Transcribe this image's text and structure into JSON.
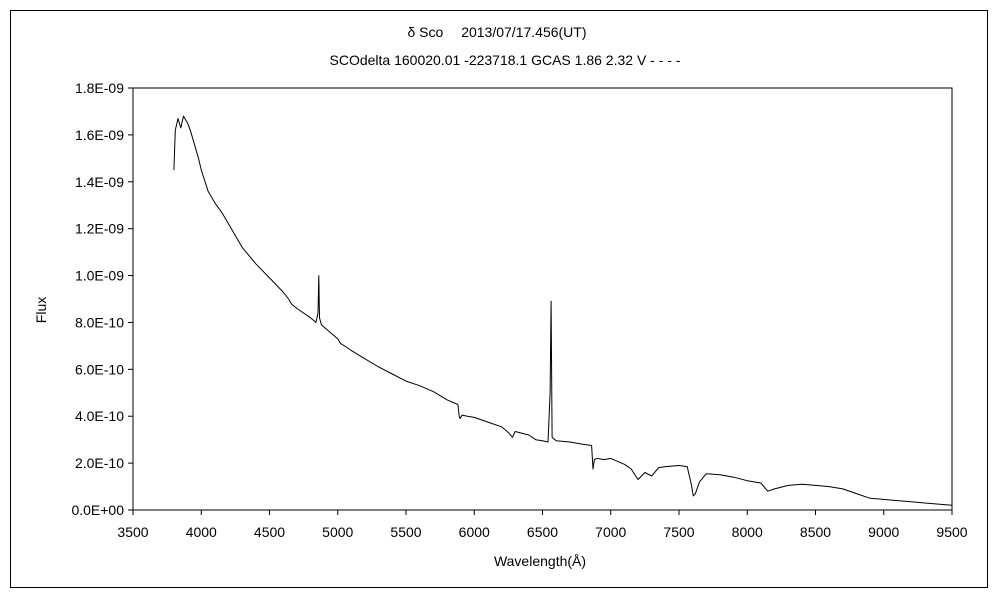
{
  "chart_data": {
    "type": "line",
    "title": "δ Sco　 2013/07/17.456(UT)",
    "subtitle": "SCOdelta 160020.01 -223718.1 GCAS 1.86 2.32 V - - - -",
    "xlabel": "Wavelength(Å)",
    "ylabel": "Flux",
    "xlim": [
      3500,
      9500
    ],
    "ylim": [
      0,
      1.8e-09
    ],
    "x_ticks": [
      3500,
      4000,
      4500,
      5000,
      5500,
      6000,
      6500,
      7000,
      7500,
      8000,
      8500,
      9000,
      9500
    ],
    "x_tick_labels": [
      "3500",
      "4000",
      "4500",
      "5000",
      "5500",
      "6000",
      "6500",
      "7000",
      "7500",
      "8000",
      "8500",
      "9000",
      "9500"
    ],
    "y_ticks": [
      0,
      2e-10,
      4e-10,
      6e-10,
      8e-10,
      1e-09,
      1.2e-09,
      1.4e-09,
      1.6e-09,
      1.8e-09
    ],
    "y_tick_labels": [
      "0.0E+00",
      "2.0E-10",
      "4.0E-10",
      "6.0E-10",
      "8.0E-10",
      "1.0E-09",
      "1.2E-09",
      "1.4E-09",
      "1.6E-09",
      "1.8E-09"
    ],
    "grid": false,
    "legend": "none",
    "series": [
      {
        "color": "#000000",
        "x": [
          3800,
          3810,
          3830,
          3850,
          3870,
          3900,
          3920,
          3950,
          3980,
          4000,
          4050,
          4100,
          4150,
          4200,
          4300,
          4400,
          4500,
          4600,
          4640,
          4660,
          4700,
          4800,
          4840,
          4855,
          4861,
          4866,
          4880,
          4920,
          5000,
          5020,
          5050,
          5100,
          5200,
          5300,
          5400,
          5500,
          5600,
          5700,
          5800,
          5880,
          5890,
          5896,
          5910,
          5950,
          6000,
          6100,
          6200,
          6250,
          6280,
          6300,
          6400,
          6450,
          6500,
          6540,
          6556,
          6563,
          6570,
          6600,
          6700,
          6800,
          6860,
          6870,
          6880,
          6900,
          6950,
          7000,
          7100,
          7150,
          7200,
          7250,
          7300,
          7350,
          7400,
          7500,
          7560,
          7590,
          7605,
          7620,
          7650,
          7700,
          7800,
          7900,
          8000,
          8100,
          8150,
          8200,
          8300,
          8400,
          8500,
          8600,
          8700,
          8800,
          8900,
          9000,
          9100,
          9200,
          9300,
          9400,
          9500
        ],
        "y": [
          1.45e-09,
          1.62e-09,
          1.67e-09,
          1.63e-09,
          1.68e-09,
          1.65e-09,
          1.62e-09,
          1.56e-09,
          1.5e-09,
          1.45e-09,
          1.36e-09,
          1.31e-09,
          1.27e-09,
          1.22e-09,
          1.12e-09,
          1.05e-09,
          9.9e-10,
          9.3e-10,
          9e-10,
          8.8e-10,
          8.6e-10,
          8.2e-10,
          8e-10,
          8.4e-10,
          1e-09,
          8.2e-10,
          7.9e-10,
          7.7e-10,
          7.3e-10,
          7.1e-10,
          7e-10,
          6.8e-10,
          6.45e-10,
          6.1e-10,
          5.8e-10,
          5.5e-10,
          5.3e-10,
          5.05e-10,
          4.7e-10,
          4.5e-10,
          4e-10,
          3.9e-10,
          4.05e-10,
          4e-10,
          3.95e-10,
          3.75e-10,
          3.55e-10,
          3.3e-10,
          3.1e-10,
          3.35e-10,
          3.2e-10,
          3e-10,
          2.95e-10,
          2.9e-10,
          5e-10,
          8.9e-10,
          3.1e-10,
          2.95e-10,
          2.9e-10,
          2.8e-10,
          2.75e-10,
          1.75e-10,
          2.15e-10,
          2.2e-10,
          2.15e-10,
          2.2e-10,
          1.95e-10,
          1.75e-10,
          1.3e-10,
          1.6e-10,
          1.45e-10,
          1.8e-10,
          1.85e-10,
          1.9e-10,
          1.85e-10,
          1.1e-10,
          6e-11,
          7e-11,
          1.2e-10,
          1.55e-10,
          1.5e-10,
          1.4e-10,
          1.25e-10,
          1.15e-10,
          8e-11,
          9e-11,
          1.05e-10,
          1.1e-10,
          1.05e-10,
          1e-10,
          9e-11,
          7e-11,
          5e-11,
          4.5e-11,
          4e-11,
          3.5e-11,
          3e-11,
          2.5e-11,
          2e-11
        ]
      }
    ]
  }
}
